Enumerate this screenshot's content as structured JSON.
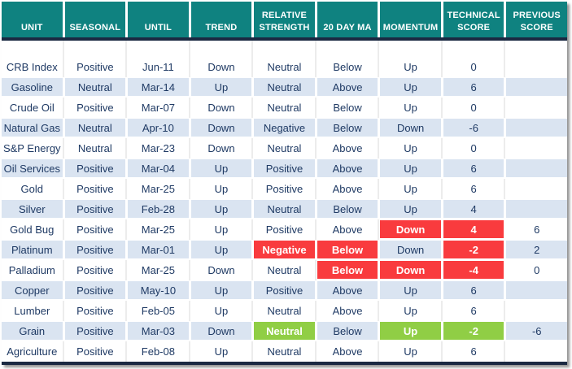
{
  "chart_data": {
    "type": "table",
    "columns": [
      "UNIT",
      "SEASONAL",
      "UNTIL",
      "TREND",
      "RELATIVE STRENGTH",
      "20 DAY MA",
      "MOMENTUM",
      "TECHNICAL SCORE",
      "PREVIOUS SCORE"
    ],
    "column_keys": [
      "unit",
      "seasonal",
      "until",
      "trend",
      "relative-strength",
      "ma-20",
      "momentum",
      "technical-score",
      "previous-score"
    ],
    "rows": [
      {
        "cells": [
          "CRB Index",
          "Positive",
          "Jun-11",
          "Down",
          "Neutral",
          "Below",
          "Up",
          "0",
          ""
        ],
        "highlights": {}
      },
      {
        "cells": [
          "Gasoline",
          "Neutral",
          "Mar-14",
          "Up",
          "Neutral",
          "Above",
          "Up",
          "6",
          ""
        ],
        "highlights": {}
      },
      {
        "cells": [
          "Crude Oil",
          "Positive",
          "Mar-07",
          "Down",
          "Neutral",
          "Below",
          "Up",
          "0",
          ""
        ],
        "highlights": {}
      },
      {
        "cells": [
          "Natural Gas",
          "Neutral",
          "Apr-10",
          "Down",
          "Negative",
          "Below",
          "Down",
          "-6",
          ""
        ],
        "highlights": {}
      },
      {
        "cells": [
          "S&P Energy",
          "Neutral",
          "Mar-23",
          "Down",
          "Neutral",
          "Above",
          "Up",
          "0",
          ""
        ],
        "highlights": {}
      },
      {
        "cells": [
          "Oil Services",
          "Positive",
          "Mar-04",
          "Up",
          "Positive",
          "Above",
          "Up",
          "6",
          ""
        ],
        "highlights": {}
      },
      {
        "cells": [
          "Gold",
          "Positive",
          "Mar-25",
          "Up",
          "Positive",
          "Above",
          "Up",
          "6",
          ""
        ],
        "highlights": {}
      },
      {
        "cells": [
          "Silver",
          "Positive",
          "Feb-28",
          "Up",
          "Neutral",
          "Below",
          "Up",
          "4",
          ""
        ],
        "highlights": {}
      },
      {
        "cells": [
          "Gold Bug",
          "Positive",
          "Mar-25",
          "Up",
          "Positive",
          "Above",
          "Down",
          "4",
          "6"
        ],
        "highlights": {
          "6": "red",
          "7": "red"
        }
      },
      {
        "cells": [
          "Platinum",
          "Positive",
          "Mar-01",
          "Up",
          "Negative",
          "Below",
          "Down",
          "-2",
          "2"
        ],
        "highlights": {
          "4": "red",
          "5": "red",
          "7": "red"
        }
      },
      {
        "cells": [
          "Palladium",
          "Positive",
          "Mar-25",
          "Down",
          "Neutral",
          "Below",
          "Down",
          "-4",
          "0"
        ],
        "highlights": {
          "5": "red",
          "6": "red",
          "7": "red"
        }
      },
      {
        "cells": [
          "Copper",
          "Positive",
          "May-10",
          "Up",
          "Positive",
          "Above",
          "Up",
          "6",
          ""
        ],
        "highlights": {}
      },
      {
        "cells": [
          "Lumber",
          "Positive",
          "Feb-05",
          "Up",
          "Neutral",
          "Above",
          "Up",
          "6",
          ""
        ],
        "highlights": {}
      },
      {
        "cells": [
          "Grain",
          "Positive",
          "Mar-03",
          "Down",
          "Neutral",
          "Below",
          "Up",
          "-2",
          "-6"
        ],
        "highlights": {
          "4": "green",
          "6": "green",
          "7": "green"
        }
      },
      {
        "cells": [
          "Agriculture",
          "Positive",
          "Feb-08",
          "Up",
          "Neutral",
          "Above",
          "Up",
          "6",
          ""
        ],
        "highlights": {}
      }
    ]
  },
  "colors": {
    "header-bg": "#0F8280",
    "stripe": "#DAE4F1",
    "negative": "#F93B3E",
    "positive": "#90CE45",
    "text": "#1F3A64",
    "divider": "#1B2942"
  }
}
